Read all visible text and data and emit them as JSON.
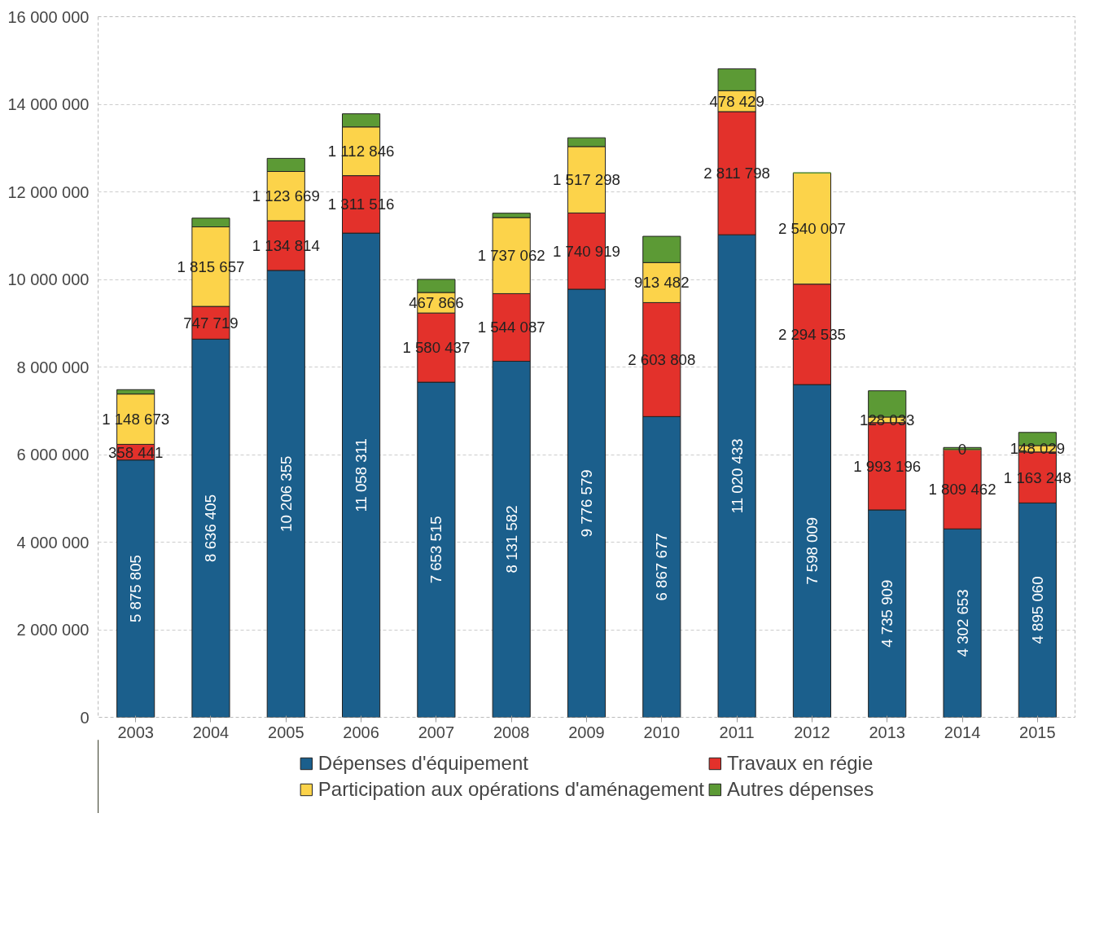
{
  "chart_data": {
    "type": "bar",
    "stacked": true,
    "categories": [
      "2003",
      "2004",
      "2005",
      "2006",
      "2007",
      "2008",
      "2009",
      "2010",
      "2011",
      "2012",
      "2013",
      "2014",
      "2015"
    ],
    "series": [
      {
        "name": "Dépenses d'équipement",
        "color": "#1b5f8c",
        "values": [
          5875805,
          8636405,
          10206355,
          11058311,
          7653515,
          8131582,
          9776579,
          6867677,
          11020433,
          7598009,
          4735909,
          4302653,
          4895060
        ],
        "value_labels": [
          "5 875 805",
          "8 636 405",
          "10 206 355",
          "11 058 311",
          "7 653 515",
          "8 131 582",
          "9 776 579",
          "6 867 677",
          "11 020 433",
          "7 598 009",
          "4 735 909",
          "4 302 653",
          "4 895 060"
        ]
      },
      {
        "name": "Travaux en régie",
        "color": "#e3312b",
        "values": [
          358441,
          747719,
          1134814,
          1311516,
          1580437,
          1544087,
          1740919,
          2603808,
          2811798,
          2294535,
          1993196,
          1809462,
          1163248
        ],
        "value_labels": [
          "358 441",
          "747 719",
          "1 134 814",
          "1 311 516",
          "1 580 437",
          "1 544 087",
          "1 740 919",
          "2 603 808",
          "2 811 798",
          "2 294 535",
          "1 993 196",
          "1 809 462",
          "1 163 248"
        ]
      },
      {
        "name": "Participation aux opérations d'aménagement",
        "color": "#fcd34a",
        "values": [
          1148673,
          1815657,
          1123669,
          1112846,
          467866,
          1737062,
          1517298,
          913482,
          478429,
          2540007,
          128033,
          0,
          148029
        ],
        "value_labels": [
          "1 148 673",
          "1 815 657",
          "1 123 669",
          "1 112 846",
          "467 866",
          "1 737 062",
          "1 517 298",
          "913 482",
          "478 429",
          "2 540 007",
          "128 033",
          "0",
          "148 029"
        ]
      },
      {
        "name": "Autres dépenses",
        "color": "#5c9a35",
        "values": [
          100000,
          200000,
          300000,
          300000,
          300000,
          100000,
          200000,
          600000,
          500000,
          null,
          600000,
          50000,
          300000
        ]
      }
    ],
    "ylim": [
      0,
      16000000
    ],
    "yticks": [
      {
        "value": 0,
        "label": "0"
      },
      {
        "value": 2000000,
        "label": "2 000 000"
      },
      {
        "value": 4000000,
        "label": "4 000 000"
      },
      {
        "value": 6000000,
        "label": "6 000 000"
      },
      {
        "value": 8000000,
        "label": "8 000 000"
      },
      {
        "value": 10000000,
        "label": "10 000 000"
      },
      {
        "value": 12000000,
        "label": "12 000 000"
      },
      {
        "value": 14000000,
        "label": "14 000 000"
      },
      {
        "value": 16000000,
        "label": "16 000 000"
      }
    ],
    "grid": "y",
    "legend": "bottom"
  }
}
